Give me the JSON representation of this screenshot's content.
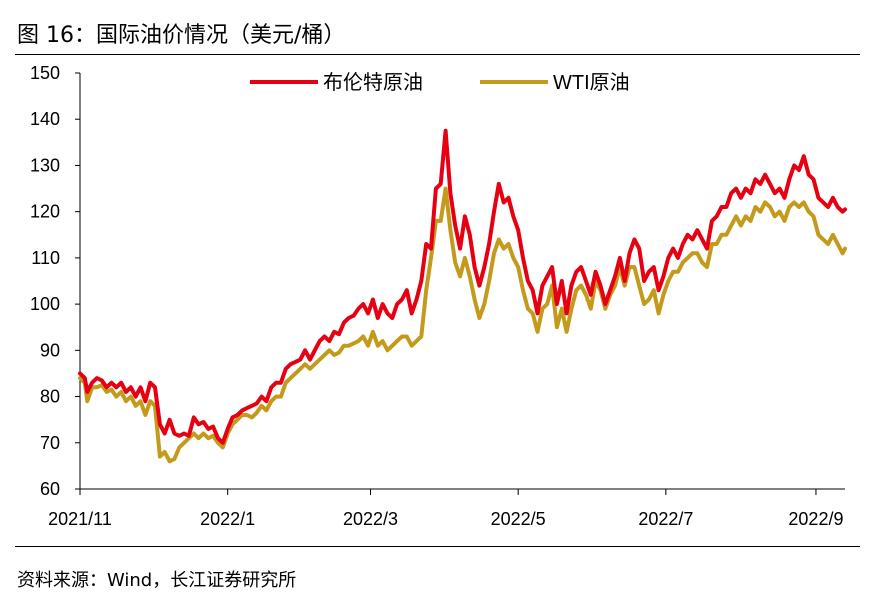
{
  "figure": {
    "title": "图 16：国际油价情况（美元/桶）",
    "source": "资料来源：Wind，长江证券研究所"
  },
  "chart_data": {
    "type": "line",
    "title": "国际油价情况（美元/桶）",
    "xlabel": "",
    "ylabel": "美元/桶",
    "ylim": [
      60,
      150
    ],
    "yticks": [
      60,
      70,
      80,
      90,
      100,
      110,
      120,
      130,
      140,
      150
    ],
    "xlim": [
      0,
      316
    ],
    "xticks": [
      {
        "label": "2021/11",
        "x": 0
      },
      {
        "label": "2022/1",
        "x": 61
      },
      {
        "label": "2022/3",
        "x": 120
      },
      {
        "label": "2022/5",
        "x": 181
      },
      {
        "label": "2022/7",
        "x": 242
      },
      {
        "label": "2022/9",
        "x": 304
      }
    ],
    "legend_position": "top",
    "series": [
      {
        "name": "布伦特原油",
        "color": "#e60012",
        "points": [
          [
            0,
            85
          ],
          [
            2,
            84
          ],
          [
            3,
            81
          ],
          [
            5,
            83
          ],
          [
            7,
            84
          ],
          [
            9,
            83.5
          ],
          [
            11,
            82
          ],
          [
            13,
            83
          ],
          [
            15,
            82
          ],
          [
            17,
            83
          ],
          [
            19,
            81
          ],
          [
            21,
            82
          ],
          [
            23,
            80
          ],
          [
            25,
            82
          ],
          [
            27,
            79
          ],
          [
            29,
            83
          ],
          [
            31,
            82
          ],
          [
            33,
            74
          ],
          [
            35,
            72
          ],
          [
            37,
            75
          ],
          [
            39,
            72
          ],
          [
            41,
            71.5
          ],
          [
            43,
            72
          ],
          [
            45,
            71.5
          ],
          [
            47,
            75.5
          ],
          [
            49,
            74
          ],
          [
            51,
            74.5
          ],
          [
            53,
            73
          ],
          [
            55,
            73.5
          ],
          [
            57,
            71
          ],
          [
            59,
            70
          ],
          [
            61,
            73
          ],
          [
            63,
            75.5
          ],
          [
            65,
            76
          ],
          [
            67,
            77
          ],
          [
            69,
            77.5
          ],
          [
            71,
            78
          ],
          [
            73,
            78.5
          ],
          [
            75,
            80
          ],
          [
            77,
            79
          ],
          [
            79,
            82
          ],
          [
            81,
            83
          ],
          [
            83,
            83
          ],
          [
            85,
            86
          ],
          [
            87,
            87
          ],
          [
            89,
            87.5
          ],
          [
            91,
            88
          ],
          [
            93,
            90
          ],
          [
            95,
            88
          ],
          [
            97,
            90
          ],
          [
            99,
            92
          ],
          [
            101,
            93
          ],
          [
            103,
            92
          ],
          [
            105,
            94
          ],
          [
            107,
            93.5
          ],
          [
            109,
            96
          ],
          [
            111,
            97
          ],
          [
            113,
            97.5
          ],
          [
            115,
            99
          ],
          [
            117,
            100
          ],
          [
            119,
            98
          ],
          [
            121,
            101
          ],
          [
            123,
            97
          ],
          [
            125,
            100
          ],
          [
            127,
            98
          ],
          [
            129,
            97
          ],
          [
            131,
            100
          ],
          [
            133,
            101
          ],
          [
            135,
            103
          ],
          [
            137,
            98
          ],
          [
            139,
            101
          ],
          [
            141,
            105
          ],
          [
            143,
            113
          ],
          [
            145,
            112
          ],
          [
            147,
            125
          ],
          [
            149,
            126
          ],
          [
            151,
            137.5
          ],
          [
            153,
            124
          ],
          [
            155,
            117
          ],
          [
            157,
            112
          ],
          [
            159,
            119
          ],
          [
            161,
            115
          ],
          [
            163,
            108
          ],
          [
            165,
            104
          ],
          [
            167,
            108
          ],
          [
            169,
            113
          ],
          [
            171,
            120
          ],
          [
            173,
            126
          ],
          [
            175,
            122
          ],
          [
            177,
            123
          ],
          [
            179,
            119
          ],
          [
            181,
            116
          ],
          [
            183,
            110
          ],
          [
            185,
            105
          ],
          [
            187,
            103
          ],
          [
            189,
            98
          ],
          [
            191,
            104
          ],
          [
            193,
            106
          ],
          [
            195,
            108
          ],
          [
            197,
            100
          ],
          [
            199,
            105
          ],
          [
            201,
            98
          ],
          [
            203,
            104
          ],
          [
            205,
            107
          ],
          [
            207,
            108
          ],
          [
            209,
            105
          ],
          [
            211,
            102
          ],
          [
            213,
            107
          ],
          [
            215,
            104
          ],
          [
            217,
            100
          ],
          [
            219,
            103
          ],
          [
            221,
            106
          ],
          [
            223,
            110
          ],
          [
            225,
            105
          ],
          [
            227,
            111
          ],
          [
            229,
            114
          ],
          [
            231,
            112
          ],
          [
            233,
            105
          ],
          [
            235,
            107
          ],
          [
            237,
            108
          ],
          [
            239,
            103
          ],
          [
            241,
            106
          ],
          [
            243,
            110
          ],
          [
            245,
            112
          ],
          [
            247,
            110
          ],
          [
            249,
            113
          ],
          [
            251,
            115
          ],
          [
            253,
            114
          ],
          [
            255,
            116
          ],
          [
            257,
            114
          ],
          [
            259,
            112
          ],
          [
            261,
            118
          ],
          [
            263,
            119
          ],
          [
            265,
            121
          ],
          [
            267,
            121
          ],
          [
            269,
            124
          ],
          [
            271,
            125
          ],
          [
            273,
            123
          ],
          [
            275,
            125
          ],
          [
            277,
            124
          ],
          [
            279,
            127
          ],
          [
            281,
            126
          ],
          [
            283,
            128
          ],
          [
            285,
            126
          ],
          [
            287,
            124
          ],
          [
            289,
            125
          ],
          [
            291,
            123
          ],
          [
            293,
            127
          ],
          [
            295,
            130
          ],
          [
            297,
            129
          ],
          [
            299,
            132
          ],
          [
            301,
            128
          ],
          [
            303,
            127
          ],
          [
            305,
            123
          ],
          [
            307,
            122
          ],
          [
            309,
            121
          ],
          [
            311,
            123
          ],
          [
            313,
            121
          ],
          [
            315,
            120
          ],
          [
            316,
            120.5
          ]
        ]
      },
      {
        "name": "WTI原油",
        "color": "#c49a1c",
        "points": [
          [
            0,
            84
          ],
          [
            2,
            83
          ],
          [
            3,
            79
          ],
          [
            5,
            82
          ],
          [
            7,
            82
          ],
          [
            9,
            82.5
          ],
          [
            11,
            81
          ],
          [
            13,
            81.5
          ],
          [
            15,
            80
          ],
          [
            17,
            81
          ],
          [
            19,
            79
          ],
          [
            21,
            80
          ],
          [
            23,
            78
          ],
          [
            25,
            79
          ],
          [
            27,
            76
          ],
          [
            29,
            79
          ],
          [
            31,
            78
          ],
          [
            33,
            67
          ],
          [
            35,
            68
          ],
          [
            37,
            66
          ],
          [
            39,
            66.5
          ],
          [
            41,
            69
          ],
          [
            43,
            70
          ],
          [
            45,
            71
          ],
          [
            47,
            72
          ],
          [
            49,
            71
          ],
          [
            51,
            72
          ],
          [
            53,
            71
          ],
          [
            55,
            71.5
          ],
          [
            57,
            70
          ],
          [
            59,
            69
          ],
          [
            61,
            72
          ],
          [
            63,
            74
          ],
          [
            65,
            75
          ],
          [
            67,
            76
          ],
          [
            69,
            76
          ],
          [
            71,
            75.5
          ],
          [
            73,
            76.5
          ],
          [
            75,
            78
          ],
          [
            77,
            77
          ],
          [
            79,
            79
          ],
          [
            81,
            80
          ],
          [
            83,
            80
          ],
          [
            85,
            83
          ],
          [
            87,
            84
          ],
          [
            89,
            85
          ],
          [
            91,
            86
          ],
          [
            93,
            87
          ],
          [
            95,
            86
          ],
          [
            97,
            87
          ],
          [
            99,
            88
          ],
          [
            101,
            89
          ],
          [
            103,
            90
          ],
          [
            105,
            89
          ],
          [
            107,
            89.5
          ],
          [
            109,
            91
          ],
          [
            111,
            91
          ],
          [
            113,
            91.5
          ],
          [
            115,
            92
          ],
          [
            117,
            93
          ],
          [
            119,
            91
          ],
          [
            121,
            94
          ],
          [
            123,
            91
          ],
          [
            125,
            92
          ],
          [
            127,
            90
          ],
          [
            129,
            91
          ],
          [
            131,
            92
          ],
          [
            133,
            93
          ],
          [
            135,
            93
          ],
          [
            137,
            91
          ],
          [
            139,
            92
          ],
          [
            141,
            93
          ],
          [
            143,
            103
          ],
          [
            145,
            110
          ],
          [
            147,
            118
          ],
          [
            149,
            118
          ],
          [
            151,
            125
          ],
          [
            153,
            116
          ],
          [
            155,
            109
          ],
          [
            157,
            106
          ],
          [
            159,
            110
          ],
          [
            161,
            106
          ],
          [
            163,
            101
          ],
          [
            165,
            97
          ],
          [
            167,
            100
          ],
          [
            169,
            105
          ],
          [
            171,
            111
          ],
          [
            173,
            114
          ],
          [
            175,
            112
          ],
          [
            177,
            113
          ],
          [
            179,
            110
          ],
          [
            181,
            108
          ],
          [
            183,
            103
          ],
          [
            185,
            99
          ],
          [
            187,
            98
          ],
          [
            189,
            94
          ],
          [
            191,
            99
          ],
          [
            193,
            100
          ],
          [
            195,
            104
          ],
          [
            197,
            95
          ],
          [
            199,
            99
          ],
          [
            201,
            94
          ],
          [
            203,
            99
          ],
          [
            205,
            103
          ],
          [
            207,
            104
          ],
          [
            209,
            102
          ],
          [
            211,
            99
          ],
          [
            213,
            105
          ],
          [
            215,
            103
          ],
          [
            217,
            99
          ],
          [
            219,
            102
          ],
          [
            221,
            104
          ],
          [
            223,
            108
          ],
          [
            225,
            104
          ],
          [
            227,
            108
          ],
          [
            229,
            108
          ],
          [
            231,
            104
          ],
          [
            233,
            100
          ],
          [
            235,
            101
          ],
          [
            237,
            103
          ],
          [
            239,
            98
          ],
          [
            241,
            102
          ],
          [
            243,
            105
          ],
          [
            245,
            107
          ],
          [
            247,
            107
          ],
          [
            249,
            109
          ],
          [
            251,
            110
          ],
          [
            253,
            111
          ],
          [
            255,
            111
          ],
          [
            257,
            109
          ],
          [
            259,
            108
          ],
          [
            261,
            113
          ],
          [
            263,
            113
          ],
          [
            265,
            115
          ],
          [
            267,
            115
          ],
          [
            269,
            117
          ],
          [
            271,
            119
          ],
          [
            273,
            117
          ],
          [
            275,
            119
          ],
          [
            277,
            118
          ],
          [
            279,
            121
          ],
          [
            281,
            120
          ],
          [
            283,
            122
          ],
          [
            285,
            121
          ],
          [
            287,
            119
          ],
          [
            289,
            120
          ],
          [
            291,
            118
          ],
          [
            293,
            121
          ],
          [
            295,
            122
          ],
          [
            297,
            121
          ],
          [
            299,
            122
          ],
          [
            301,
            120
          ],
          [
            303,
            119
          ],
          [
            305,
            115
          ],
          [
            307,
            114
          ],
          [
            309,
            113
          ],
          [
            311,
            115
          ],
          [
            313,
            113
          ],
          [
            315,
            111
          ],
          [
            316,
            112
          ]
        ]
      }
    ]
  }
}
